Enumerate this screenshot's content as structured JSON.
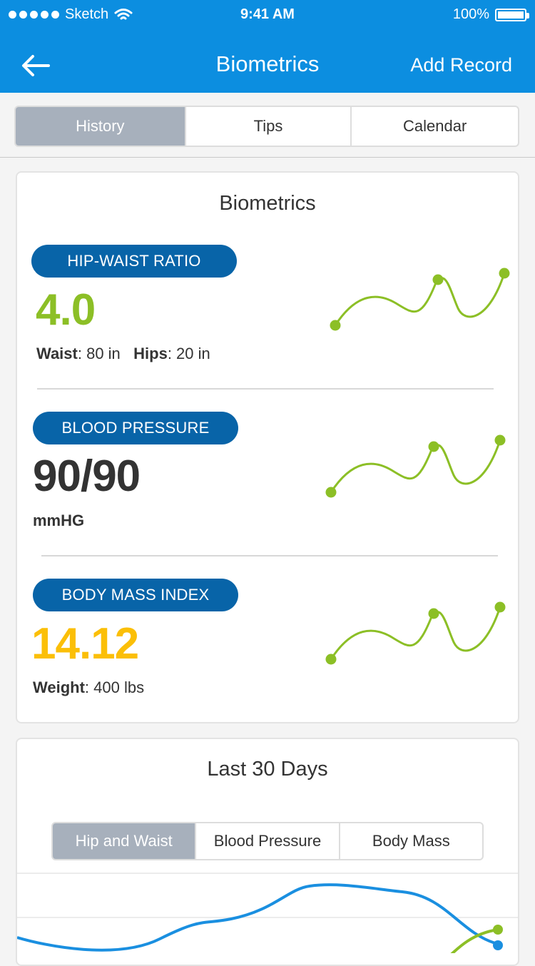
{
  "status": {
    "carrier": "Sketch",
    "time": "9:41 AM",
    "battery": "100%"
  },
  "nav": {
    "title": "Biometrics",
    "action": "Add Record",
    "back_icon": "arrow-left-icon"
  },
  "tabs": [
    {
      "label": "History",
      "active": true
    },
    {
      "label": "Tips",
      "active": false
    },
    {
      "label": "Calendar",
      "active": false
    }
  ],
  "biometrics": {
    "title": "Biometrics",
    "hip_waist": {
      "label": "HIP-WAIST RATIO",
      "value": "4.0",
      "value_color": "#8cbf26",
      "waist_label": "Waist",
      "waist_value": ": 80 in",
      "hips_label": "Hips",
      "hips_value": ": 20 in"
    },
    "blood_pressure": {
      "label": "BLOOD PRESSURE",
      "value": "90/90",
      "value_color": "#333333",
      "unit": "mmHG"
    },
    "bmi": {
      "label": "BODY MASS INDEX",
      "value": "14.12",
      "value_color": "#fbbf07",
      "weight_label": "Weight",
      "weight_value": ": 400 lbs"
    }
  },
  "last30": {
    "title": "Last 30 Days",
    "tabs": [
      {
        "label": "Hip and Waist",
        "active": true
      },
      {
        "label": "Blood Pressure",
        "active": false
      },
      {
        "label": "Body Mass",
        "active": false
      }
    ]
  },
  "colors": {
    "brand": "#0c8ee0",
    "pill": "#0864a8",
    "green": "#8cbf26",
    "blue": "#1a8fe0"
  }
}
